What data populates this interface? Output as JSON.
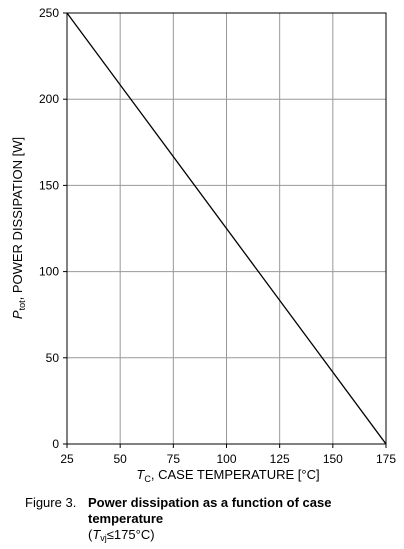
{
  "chart_data": {
    "type": "line",
    "xlabel": {
      "symbol": "T",
      "subscript": "C",
      "text": ", CASE TEMPERATURE [°C]"
    },
    "ylabel": {
      "symbol": "P",
      "subscript": "tot",
      "text": ", POWER DISSIPATION [W]"
    },
    "x": [
      25,
      175
    ],
    "series": [
      {
        "color": "#000000",
        "values": [
          250,
          0
        ]
      }
    ],
    "xlim": [
      25,
      175
    ],
    "xticks": [
      25,
      50,
      75,
      100,
      125,
      150,
      175
    ],
    "ylim": [
      0,
      250
    ],
    "yticks": [
      0,
      50,
      100,
      150,
      200,
      250
    ],
    "grid": true
  },
  "caption": {
    "number": "Figure 3.",
    "title": "Power dissipation as a function of case temperature",
    "condition_open": "(",
    "symbol": "T",
    "subscript": "vj",
    "condition": "≤175°C)"
  }
}
